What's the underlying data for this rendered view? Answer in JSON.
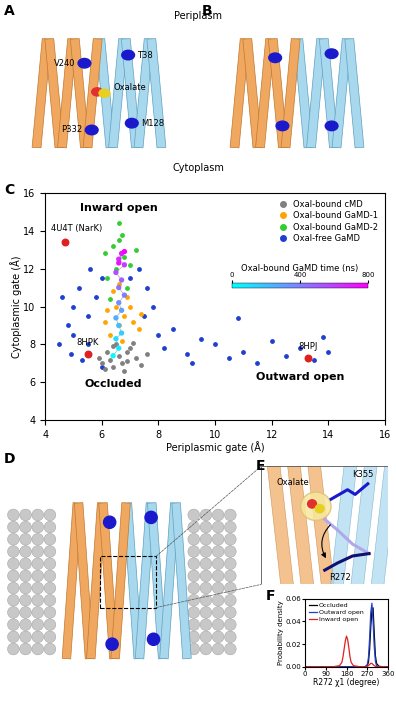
{
  "panel_labels": [
    "A",
    "B",
    "C",
    "D",
    "E",
    "F"
  ],
  "compartments": [
    "Periplasm",
    "Cytoplasm"
  ],
  "diagrams": {
    "A": {
      "ligand": "Oxalate",
      "residues": [
        "V240",
        "T38",
        "P332",
        "M128"
      ]
    },
    "E": {
      "ligand": "Oxalate",
      "residues": [
        "K355",
        "R272"
      ]
    }
  },
  "chart_data": [
    {
      "type": "scatter",
      "xlabel": "Periplasmic gate (Å)",
      "ylabel": "Cytoplasmic gate (Å)",
      "xlim": [
        4,
        16
      ],
      "ylim": [
        4,
        16
      ],
      "xticks": [
        4,
        6,
        8,
        10,
        12,
        14,
        16
      ],
      "yticks": [
        4,
        6,
        8,
        10,
        12,
        14,
        16
      ],
      "legend": "upper right",
      "marker": "o",
      "series": [
        {
          "name": "Oxal-free GaMD",
          "color": "#1f3fd0",
          "x": [
            4.5,
            4.8,
            5.0,
            5.2,
            5.0,
            5.5,
            5.8,
            6.0,
            5.5,
            5.3,
            7.5,
            7.8,
            8.0,
            7.6,
            8.2,
            9.0,
            10.0,
            11.0,
            12.0,
            12.5,
            13.0,
            13.5,
            14.0,
            13.8,
            11.5,
            10.5,
            9.5,
            10.8,
            9.2,
            4.6,
            5.6,
            7.3,
            7.0,
            4.9,
            6.0,
            8.5
          ],
          "y": [
            8.0,
            9.0,
            10.0,
            11.0,
            8.5,
            9.5,
            10.5,
            11.5,
            8.0,
            7.2,
            9.5,
            10.0,
            8.5,
            11.0,
            7.8,
            7.5,
            8.0,
            7.6,
            8.2,
            7.4,
            7.8,
            7.2,
            7.6,
            8.4,
            7.0,
            7.3,
            8.3,
            9.4,
            7.0,
            10.5,
            12.0,
            12.0,
            11.5,
            7.5,
            6.8,
            8.8
          ]
        },
        {
          "name": "Oxal-bound cMD",
          "color": "#808080",
          "x": [
            6.0,
            6.3,
            6.6,
            6.9,
            7.2,
            6.4,
            6.8,
            7.0,
            6.2,
            6.5,
            7.4,
            5.9,
            6.7,
            7.1,
            6.1,
            7.6,
            6.4,
            6.9
          ],
          "y": [
            7.0,
            7.2,
            7.4,
            7.1,
            7.3,
            6.8,
            6.6,
            7.8,
            7.6,
            8.0,
            6.9,
            7.3,
            7.0,
            8.1,
            6.7,
            7.5,
            7.9,
            7.6
          ]
        },
        {
          "name": "Oxal-bound GaMD-1",
          "color": "#ffa500",
          "x": [
            6.3,
            6.6,
            6.8,
            6.5,
            6.9,
            7.1,
            6.2,
            6.7,
            7.3,
            6.4,
            6.6,
            7.0,
            6.1,
            7.4
          ],
          "y": [
            8.5,
            9.0,
            9.5,
            10.0,
            10.5,
            9.2,
            9.8,
            8.2,
            8.8,
            10.8,
            11.2,
            10.0,
            9.2,
            9.6
          ]
        },
        {
          "name": "Oxal-bound GaMD-2",
          "color": "#33cc33",
          "x": [
            6.2,
            6.5,
            6.8,
            6.4,
            6.7,
            6.6,
            7.0,
            6.1,
            6.9,
            7.2,
            6.3,
            6.6
          ],
          "y": [
            11.5,
            12.0,
            12.6,
            13.2,
            13.8,
            14.4,
            12.2,
            12.8,
            11.0,
            13.0,
            10.4,
            13.5
          ]
        }
      ],
      "trajectory": {
        "colorbar_label": "Oxal-bound GaMD time (ns)",
        "colorbar_range": [
          0,
          800
        ],
        "colorbar_ticks": [
          0,
          400,
          800
        ],
        "x": [
          6.4,
          6.6,
          6.5,
          6.7,
          6.6,
          6.5,
          6.7,
          6.6,
          6.8,
          6.6,
          6.7,
          6.5,
          6.8,
          6.6,
          6.7,
          6.6,
          6.8
        ],
        "y": [
          7.4,
          7.8,
          8.3,
          8.6,
          9.0,
          9.4,
          9.8,
          10.2,
          10.6,
          11.0,
          11.4,
          11.8,
          12.2,
          12.5,
          12.8,
          12.3,
          12.9
        ],
        "time": [
          20,
          60,
          100,
          150,
          200,
          250,
          300,
          350,
          400,
          450,
          500,
          550,
          600,
          650,
          700,
          750,
          800
        ]
      },
      "references": [
        {
          "label": "4U4T (NarK)",
          "x": 4.7,
          "y": 13.4,
          "color": "#e02020"
        },
        {
          "label": "8HPK",
          "x": 5.5,
          "y": 7.5,
          "color": "#e02020"
        },
        {
          "label": "8HPJ",
          "x": 13.3,
          "y": 7.3,
          "color": "#e02020"
        }
      ],
      "annotations": [
        {
          "text": "Inward open",
          "x": 6.6,
          "y": 15.2
        },
        {
          "text": "Occluded",
          "x": 6.4,
          "y": 5.9
        },
        {
          "text": "Outward open",
          "x": 13.0,
          "y": 6.3
        }
      ]
    },
    {
      "type": "line",
      "xlabel": "R272 χ1 (degree)",
      "ylabel": "Probability density",
      "xlim": [
        0,
        360
      ],
      "xticks": [
        0,
        90,
        180,
        270,
        360
      ],
      "ylim": [
        0,
        0.06
      ],
      "yticks": [
        {
          "value": 0,
          "label": "0.00"
        },
        {
          "value": 0.02,
          "label": "0.02"
        },
        {
          "value": 0.04,
          "label": "0.04"
        },
        {
          "value": 0.06,
          "label": "0.06"
        }
      ],
      "legend": "upper left",
      "x": [
        0,
        30,
        60,
        90,
        120,
        150,
        160,
        165,
        170,
        175,
        180,
        185,
        190,
        195,
        200,
        210,
        240,
        260,
        270,
        275,
        280,
        285,
        290,
        295,
        300,
        305,
        310,
        320,
        340,
        360
      ],
      "series": [
        {
          "name": "Occluded",
          "color": "#000000",
          "values": [
            0,
            0,
            0,
            0,
            0,
            0,
            0,
            0,
            0,
            0,
            0,
            0,
            0,
            0,
            0,
            0,
            0,
            0,
            0.001,
            0.004,
            0.015,
            0.035,
            0.05,
            0.052,
            0.03,
            0.01,
            0.003,
            0.0005,
            0,
            0
          ]
        },
        {
          "name": "Outward open",
          "color": "#1f3fd0",
          "values": [
            0,
            0,
            0,
            0,
            0,
            0,
            0,
            0,
            0,
            0,
            0,
            0,
            0,
            0,
            0,
            0,
            0,
            0,
            0.002,
            0.008,
            0.025,
            0.048,
            0.056,
            0.04,
            0.018,
            0.005,
            0.001,
            0,
            0,
            0
          ]
        },
        {
          "name": "Inward open",
          "color": "#e02020",
          "values": [
            0,
            0,
            0,
            0,
            0,
            0.001,
            0.004,
            0.009,
            0.016,
            0.023,
            0.027,
            0.024,
            0.017,
            0.009,
            0.004,
            0.001,
            0,
            0,
            0.0005,
            0.001,
            0.002,
            0.003,
            0.003,
            0.002,
            0.001,
            0.0005,
            0,
            0,
            0,
            0
          ]
        }
      ]
    }
  ]
}
